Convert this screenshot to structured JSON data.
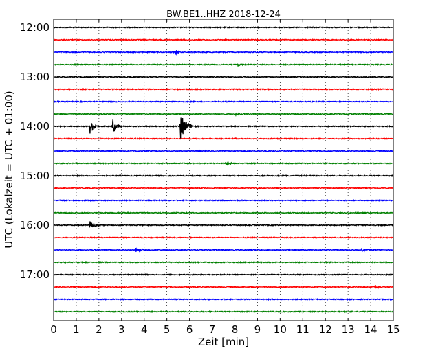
{
  "chart_data": {
    "type": "line",
    "title": "BW.BE1..HHZ 2018-12-24",
    "xlabel": "Zeit  [min]",
    "ylabel": "UTC (Lokalzeit = UTC + 01:00)",
    "xlim": [
      0,
      15
    ],
    "x_ticks": [
      "0",
      "1",
      "2",
      "3",
      "4",
      "5",
      "6",
      "7",
      "8",
      "9",
      "10",
      "11",
      "12",
      "13",
      "14",
      "15"
    ],
    "y_ticks": [
      {
        "trace": 0,
        "label": "12:00"
      },
      {
        "trace": 4,
        "label": "13:00"
      },
      {
        "trace": 8,
        "label": "14:00"
      },
      {
        "trace": 12,
        "label": "15:00"
      },
      {
        "trace": 16,
        "label": "16:00"
      },
      {
        "trace": 20,
        "label": "17:00"
      }
    ],
    "grid": "vertical-dotted",
    "trace_colors": [
      "#000000",
      "#ff0000",
      "#0000ff",
      "#008000"
    ],
    "traces": [
      {
        "start": "12:00",
        "events": [
          {
            "t": 11.5,
            "amp": 0.35,
            "dur": 0.08
          }
        ]
      },
      {
        "start": "12:15",
        "events": [
          {
            "t": 7.7,
            "amp": 0.05,
            "dur": 0.2
          }
        ]
      },
      {
        "start": "12:30",
        "events": [
          {
            "t": 5.4,
            "amp": 0.45,
            "dur": 0.3
          }
        ]
      },
      {
        "start": "12:45",
        "events": [
          {
            "t": 8.1,
            "amp": 0.25,
            "dur": 0.8
          }
        ]
      },
      {
        "start": "13:00",
        "events": []
      },
      {
        "start": "13:15",
        "events": []
      },
      {
        "start": "13:30",
        "events": []
      },
      {
        "start": "13:45",
        "events": [
          {
            "t": 8.0,
            "amp": 0.3,
            "dur": 0.5
          }
        ]
      },
      {
        "start": "14:00",
        "events": [
          {
            "t": 1.6,
            "amp": 1.4,
            "dur": 0.5
          },
          {
            "t": 2.6,
            "amp": 1.45,
            "dur": 0.5
          },
          {
            "t": 5.6,
            "amp": 2.4,
            "dur": 0.7
          }
        ]
      },
      {
        "start": "14:15",
        "events": [
          {
            "t": 8.0,
            "amp": 0.25,
            "dur": 0.2
          }
        ]
      },
      {
        "start": "14:30",
        "events": [
          {
            "t": 6.5,
            "amp": 0.12,
            "dur": 1.4
          }
        ]
      },
      {
        "start": "14:45",
        "events": [
          {
            "t": 7.6,
            "amp": 0.3,
            "dur": 0.9
          },
          {
            "t": 9.2,
            "amp": 0.08,
            "dur": 0.1
          }
        ]
      },
      {
        "start": "15:00",
        "events": []
      },
      {
        "start": "15:15",
        "events": [
          {
            "t": 3.1,
            "amp": 0.1,
            "dur": 0.4
          }
        ]
      },
      {
        "start": "15:30",
        "events": []
      },
      {
        "start": "15:45",
        "events": []
      },
      {
        "start": "16:00",
        "events": [
          {
            "t": 1.6,
            "amp": 0.75,
            "dur": 0.7
          }
        ]
      },
      {
        "start": "16:15",
        "events": []
      },
      {
        "start": "16:30",
        "events": [
          {
            "t": 3.6,
            "amp": 0.5,
            "dur": 0.9
          },
          {
            "t": 13.6,
            "amp": 0.35,
            "dur": 0.4
          }
        ]
      },
      {
        "start": "16:45",
        "events": []
      },
      {
        "start": "17:00",
        "events": []
      },
      {
        "start": "17:15",
        "events": [
          {
            "t": 14.2,
            "amp": 0.35,
            "dur": 0.6
          }
        ]
      },
      {
        "start": "17:30",
        "events": []
      },
      {
        "start": "17:45",
        "events": []
      }
    ]
  }
}
